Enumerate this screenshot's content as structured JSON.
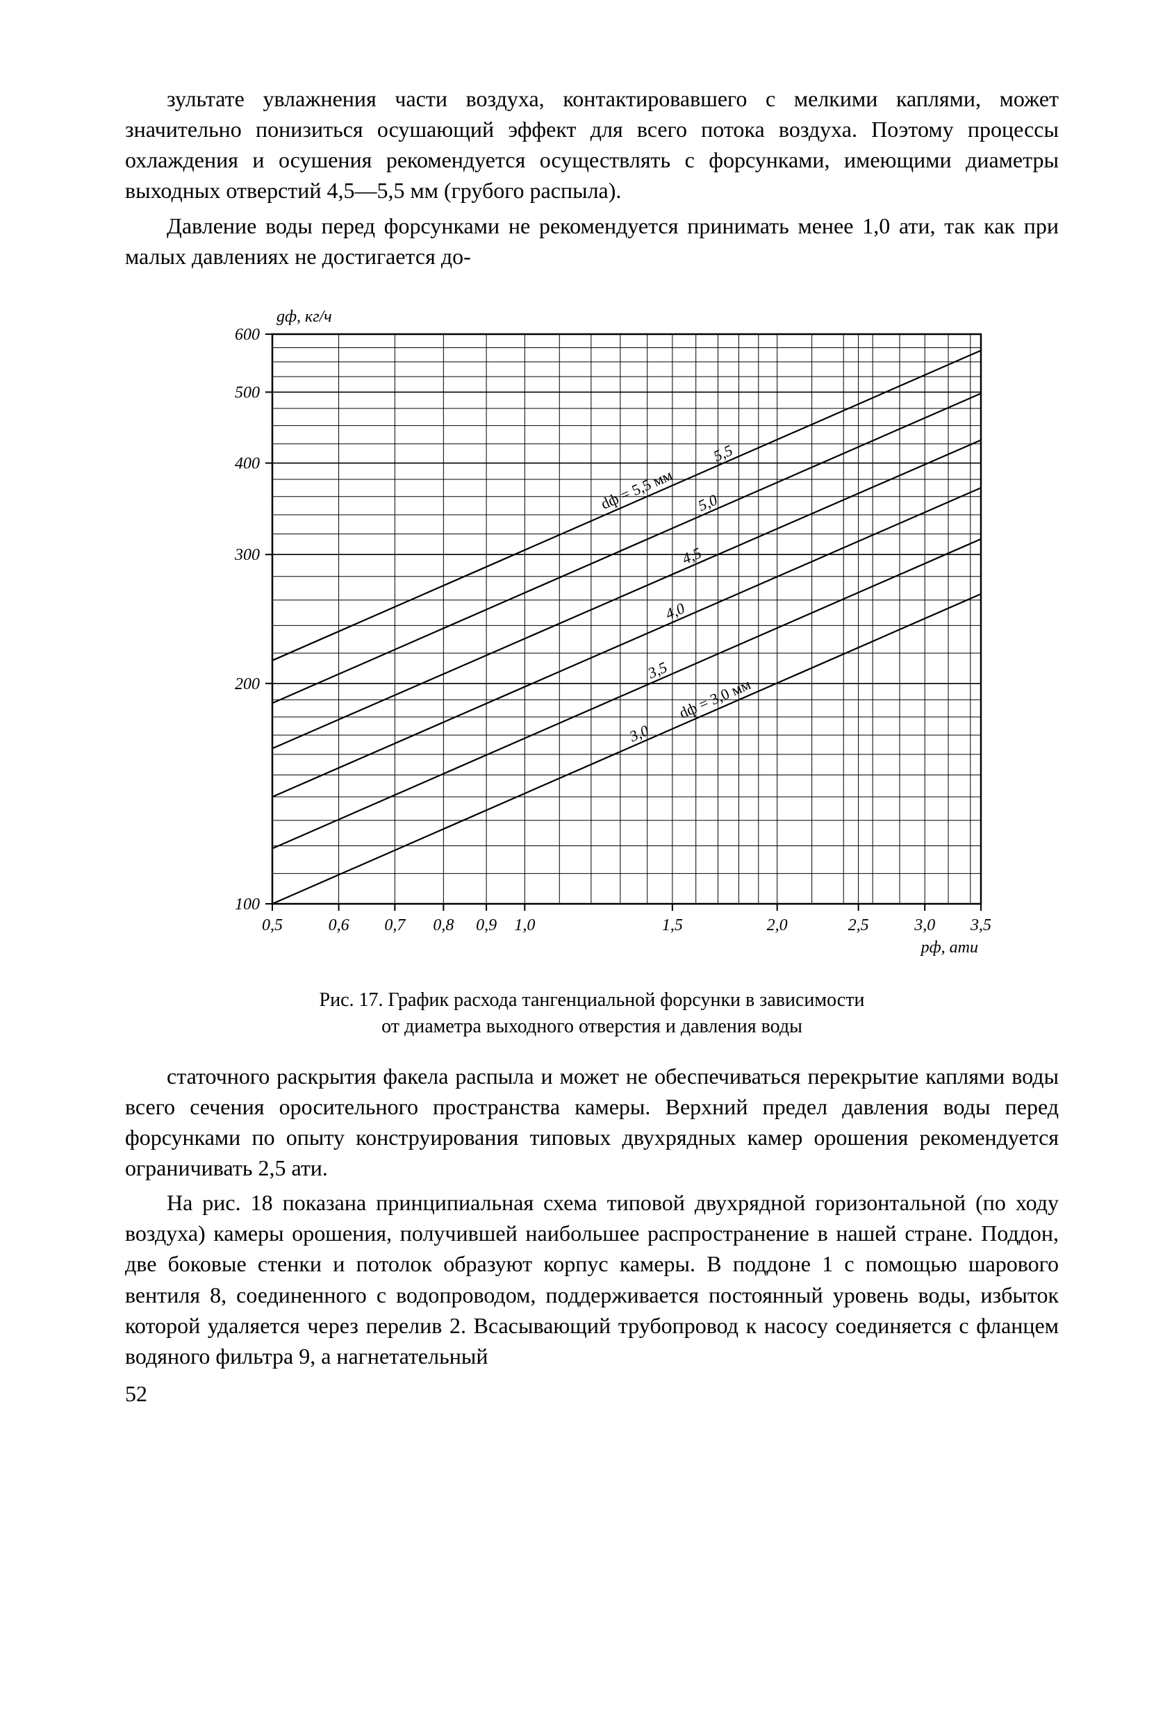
{
  "paragraphs": {
    "p1": "зультате увлажнения части воздуха, контактировавшего с мел­кими каплями, может значительно понизиться осушающий эффект для всего потока воздуха. Поэтому процессы охлаждения и осу­шения рекомендуется осуществлять с форсунками, имеющими диа­метры выходных отверстий 4,5—5,5 мм (грубого распыла).",
    "p2": "Давление воды перед форсунками не рекомендуется принимать менее 1,0 ати, так как при малых давлениях не достигается до-",
    "p3": "статочного раскрытия факела распыла и может не обеспечиваться перекрытие каплями воды всего сечения оросительного простран­ства камеры. Верхний предел давления воды перед форсунками по опыту конструирования типовых двухрядных камер орошения рекомендуется ограничивать 2,5 ати.",
    "p4": "На рис. 18 показана принципиальная схема типовой двухряд­ной горизонтальной (по ходу воздуха) камеры орошения, полу­чившей наибольшее распространение в нашей стране. Поддон, две боковые стенки и потолок образуют корпус камеры. В под­доне 1 с помощью шарового вентиля 8, соединенного с водопрово­дом, поддерживается постоянный уровень воды, избыток кото­рой удаляется через перелив 2. Всасывающий трубопровод к на­сосу соединяется с фланцем водяного фильтра 9, а нагнетательный"
  },
  "caption_line1": "Рис. 17. График расхода тангенциальной форсунки в зависимости",
  "caption_line2": "от диаметра выходного отверстия и давления воды",
  "page_number": "52",
  "chart": {
    "type": "line",
    "background_color": "#ffffff",
    "line_color": "#000000",
    "grid_color": "#000000",
    "y_axis_label": "gф, кг/ч",
    "x_axis_label": "pф, ати",
    "x_scale": "log",
    "y_scale": "log",
    "xlim": [
      0.5,
      3.5
    ],
    "ylim": [
      100,
      600
    ],
    "x_ticks": [
      "0,5",
      "0,6",
      "0,7",
      "0,8",
      "0,9",
      "1,0",
      "1,5",
      "2,0",
      "2,5",
      "3,0",
      "3,5"
    ],
    "x_tick_values": [
      0.5,
      0.6,
      0.7,
      0.8,
      0.9,
      1.0,
      1.5,
      2.0,
      2.5,
      3.0,
      3.5
    ],
    "y_ticks": [
      "100",
      "200",
      "300",
      "400",
      "500",
      "600"
    ],
    "y_tick_values": [
      100,
      200,
      300,
      400,
      500,
      600
    ],
    "inline_label_top": "dф = 5,5 мм",
    "inline_label_bottom": "dф = 3,0 мм",
    "series": [
      {
        "label": "3,0",
        "p1": [
          0.5,
          100
        ],
        "p2": [
          3.5,
          265
        ]
      },
      {
        "label": "3,5",
        "p1": [
          0.5,
          119
        ],
        "p2": [
          3.5,
          315
        ]
      },
      {
        "label": "4,0",
        "p1": [
          0.5,
          140
        ],
        "p2": [
          3.5,
          370
        ]
      },
      {
        "label": "4,5",
        "p1": [
          0.5,
          163
        ],
        "p2": [
          3.5,
          430
        ]
      },
      {
        "label": "5,0",
        "p1": [
          0.5,
          188
        ],
        "p2": [
          3.5,
          498
        ]
      },
      {
        "label": "5,5",
        "p1": [
          0.5,
          215
        ],
        "p2": [
          3.5,
          570
        ]
      }
    ],
    "axis_fontsize": 24,
    "label_fontsize": 22,
    "line_width": 2.2,
    "frame_width": 2.5
  }
}
